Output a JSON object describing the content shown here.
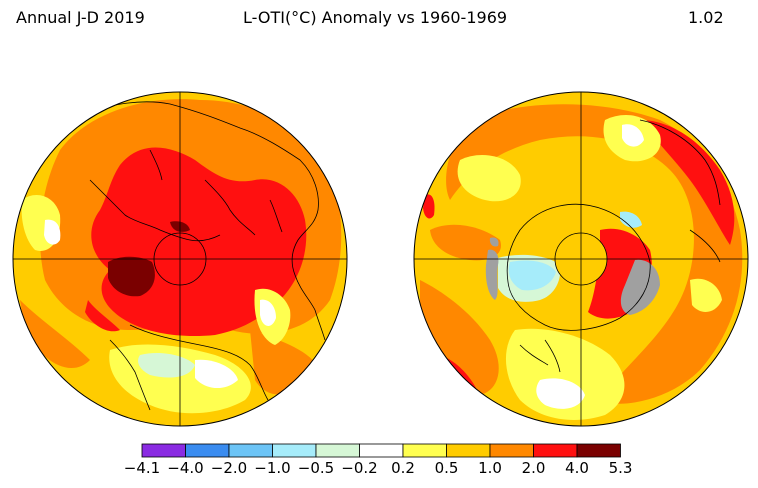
{
  "header": {
    "period": "Annual J-D 2019",
    "title": "L-OTI(°C) Anomaly vs 1960-1969",
    "global_mean": "1.02"
  },
  "colorbar": {
    "colors": [
      "#8a2be2",
      "#3a8cf0",
      "#6cc4f6",
      "#a6ecfa",
      "#d6f7d6",
      "#ffffff",
      "#ffff50",
      "#ffcc00",
      "#ff8800",
      "#ff1010",
      "#7a0000"
    ],
    "ticks": [
      "−4.1",
      "−4.0",
      "−2.0",
      "−1.0",
      "−0.5",
      "−0.2",
      "0.2",
      "0.5",
      "1.0",
      "2.0",
      "4.0",
      "5.3"
    ]
  },
  "maps": [
    {
      "name": "northern-hemisphere-map"
    },
    {
      "name": "southern-hemisphere-map"
    }
  ]
}
